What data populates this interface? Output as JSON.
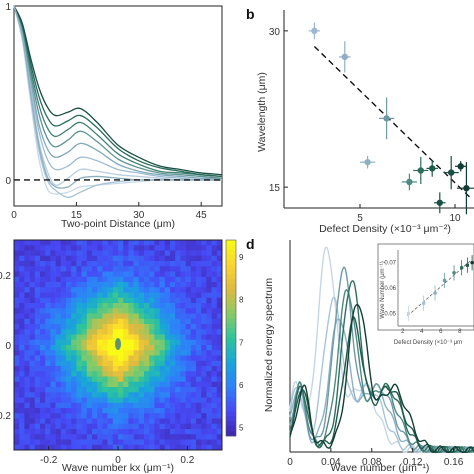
{
  "chart_data": [
    {
      "panel": "a",
      "type": "line",
      "xlabel": "Two-point Distance (μm)",
      "ylabel": "",
      "xlim": [
        0,
        50
      ],
      "ylim": [
        -0.15,
        1.0
      ],
      "x_ticks": [
        "0",
        "15",
        "30",
        "45"
      ],
      "y_ticks": [
        "1",
        "0"
      ],
      "grid": false,
      "series": [
        {
          "x": [
            0,
            2,
            4,
            6,
            8,
            10,
            13,
            16,
            20,
            25,
            30,
            35,
            40,
            45,
            50
          ],
          "y": [
            1,
            0.84,
            0.52,
            0.22,
            0.05,
            -0.03,
            0.01,
            0.06,
            0.05,
            0.03,
            0.02,
            0.01,
            0.0,
            0.0,
            0.0
          ]
        },
        {
          "x": [
            0,
            2,
            4,
            6,
            8,
            10,
            13,
            16,
            20,
            25,
            30,
            35,
            40,
            45,
            50
          ],
          "y": [
            1,
            0.85,
            0.55,
            0.28,
            0.12,
            0.06,
            0.08,
            0.13,
            0.11,
            0.06,
            0.04,
            0.02,
            0.01,
            0.0,
            0.0
          ]
        },
        {
          "x": [
            0,
            2,
            4,
            6,
            8,
            10,
            13,
            16,
            20,
            25,
            30,
            35,
            40,
            45,
            50
          ],
          "y": [
            1,
            0.86,
            0.58,
            0.32,
            0.18,
            0.13,
            0.16,
            0.21,
            0.17,
            0.09,
            0.05,
            0.03,
            0.02,
            0.01,
            0.01
          ]
        },
        {
          "x": [
            0,
            2,
            4,
            6,
            8,
            10,
            13,
            16,
            20,
            25,
            30,
            35,
            40,
            45,
            50
          ],
          "y": [
            1,
            0.87,
            0.61,
            0.38,
            0.24,
            0.19,
            0.23,
            0.28,
            0.22,
            0.12,
            0.07,
            0.04,
            0.03,
            0.02,
            0.01
          ]
        },
        {
          "x": [
            0,
            2,
            4,
            6,
            8,
            10,
            13,
            16,
            20,
            25,
            30,
            35,
            40,
            45,
            50
          ],
          "y": [
            1,
            0.88,
            0.64,
            0.43,
            0.3,
            0.25,
            0.29,
            0.33,
            0.26,
            0.15,
            0.09,
            0.05,
            0.04,
            0.03,
            0.02
          ]
        },
        {
          "x": [
            0,
            2,
            4,
            6,
            8,
            10,
            13,
            16,
            20,
            25,
            30,
            35,
            40,
            45,
            50
          ],
          "y": [
            1,
            0.89,
            0.67,
            0.48,
            0.36,
            0.31,
            0.34,
            0.37,
            0.3,
            0.18,
            0.11,
            0.07,
            0.05,
            0.03,
            0.02
          ]
        },
        {
          "x": [
            0,
            2,
            4,
            6,
            8,
            10,
            13,
            16,
            20,
            25,
            30,
            35,
            40,
            45,
            50
          ],
          "y": [
            1,
            0.9,
            0.7,
            0.53,
            0.42,
            0.37,
            0.39,
            0.41,
            0.33,
            0.2,
            0.13,
            0.08,
            0.06,
            0.04,
            0.03
          ]
        },
        {
          "x": [
            0,
            2,
            4,
            6,
            8,
            10,
            13,
            16,
            20,
            25,
            30,
            35,
            40,
            45,
            50
          ],
          "y": [
            1,
            0.8,
            0.45,
            0.12,
            -0.05,
            -0.08,
            -0.07,
            -0.04,
            -0.03,
            -0.02,
            -0.01,
            0.0,
            0.0,
            0.0,
            0.0
          ]
        },
        {
          "x": [
            0,
            2,
            4,
            6,
            8,
            10,
            13,
            16,
            20,
            25,
            30,
            35,
            40,
            45,
            50
          ],
          "y": [
            1,
            0.82,
            0.48,
            0.17,
            0.0,
            -0.06,
            -0.1,
            -0.07,
            -0.03,
            -0.01,
            0.0,
            0.0,
            0.0,
            0.0,
            0.0
          ]
        },
        {
          "x": [
            0,
            2,
            4,
            6,
            8,
            10,
            13,
            16,
            20,
            25,
            30,
            35,
            40,
            45,
            50
          ],
          "y": [
            1,
            0.83,
            0.5,
            0.2,
            0.02,
            -0.04,
            -0.04,
            0.01,
            0.02,
            0.01,
            0.0,
            0.0,
            0.0,
            0.0,
            0.0
          ]
        }
      ],
      "baseline_y": 0
    },
    {
      "panel": "b",
      "type": "scatter",
      "xlabel": "Defect Density (×10⁻³ μm⁻²)",
      "ylabel": "Wavelength (μm)",
      "xlim": [
        1,
        11
      ],
      "ylim": [
        13,
        32
      ],
      "x_ticks": [
        "5",
        "10"
      ],
      "x_tick_values": [
        5,
        10
      ],
      "y_ticks": [
        "15",
        "30"
      ],
      "y_tick_values": [
        15,
        30
      ],
      "grid": false,
      "points": [
        {
          "x": 2.6,
          "y": 30.0,
          "xerr": 0.3,
          "yerr": 0.8,
          "color": "#9bb7d4"
        },
        {
          "x": 4.2,
          "y": 27.5,
          "xerr": 0.3,
          "yerr": 1.5,
          "color": "#8faec7"
        },
        {
          "x": 5.4,
          "y": 17.4,
          "xerr": 0.4,
          "yerr": 0.6,
          "color": "#8eb1c2"
        },
        {
          "x": 6.4,
          "y": 21.6,
          "xerr": 0.4,
          "yerr": 2.0,
          "color": "#6f9aa5"
        },
        {
          "x": 7.6,
          "y": 15.5,
          "xerr": 0.4,
          "yerr": 0.8,
          "color": "#4f8a82"
        },
        {
          "x": 8.2,
          "y": 16.6,
          "xerr": 0.4,
          "yerr": 1.3,
          "color": "#2e6e5e"
        },
        {
          "x": 8.8,
          "y": 16.8,
          "xerr": 0.3,
          "yerr": 0.8,
          "color": "#1f5a4a"
        },
        {
          "x": 9.2,
          "y": 13.5,
          "xerr": 0.3,
          "yerr": 1.0,
          "color": "#1c5245"
        },
        {
          "x": 9.8,
          "y": 16.4,
          "xerr": 0.4,
          "yerr": 1.6,
          "color": "#1b4f43"
        },
        {
          "x": 10.3,
          "y": 17.0,
          "xerr": 0.3,
          "yerr": 0.5,
          "color": "#123d34"
        },
        {
          "x": 10.6,
          "y": 14.9,
          "xerr": 0.5,
          "yerr": 2.5,
          "color": "#123d34"
        }
      ],
      "fit_line": {
        "x": [
          2.6,
          10.8
        ],
        "y": [
          28.5,
          14.0
        ]
      }
    },
    {
      "panel": "c",
      "type": "heatmap",
      "xlabel": "Wave number kx (μm⁻¹)",
      "xlim": [
        -0.3,
        0.3
      ],
      "x_ticks": [
        "-0.2",
        "0",
        "0.2"
      ],
      "x_tick_values": [
        -0.2,
        0,
        0.2
      ],
      "y_ticks": [
        "0.2",
        "0",
        "0.2"
      ],
      "y_tick_values": [
        0.2,
        0,
        -0.2
      ],
      "colorbar_ticks": [
        "9",
        "8",
        "7",
        "6",
        "5"
      ],
      "colorbar_values": [
        9,
        8,
        7,
        6,
        5
      ],
      "clim": [
        4.8,
        9.4
      ],
      "colormap": [
        "#3e26a8",
        "#4748f4",
        "#2f7ffa",
        "#19a6d9",
        "#2cc49b",
        "#8bca65",
        "#e0b93f",
        "#fbd62e",
        "#f9fb15"
      ]
    },
    {
      "panel": "d",
      "type": "line",
      "xlabel": "Wave number (μm⁻¹)",
      "ylabel": "Normalized energy spectrum",
      "xlim": [
        0,
        0.18
      ],
      "x_ticks": [
        "0",
        "0.04",
        "0.08",
        "0.12",
        "0.16"
      ],
      "x_tick_values": [
        0,
        0.04,
        0.08,
        0.12,
        0.16
      ],
      "series_colors": [
        "#c5d7e6",
        "#a9c3d8",
        "#8eb1c2",
        "#6f9aa5",
        "#4f8a82",
        "#2e6e5e",
        "#1f5a4a",
        "#123d34"
      ],
      "peaks": [
        0.036,
        0.042,
        0.048,
        0.052,
        0.056,
        0.06,
        0.062,
        0.066
      ],
      "inset": {
        "xlabel": "Defect Density (×10⁻³ μm",
        "ylabel": "Wave Number (μm⁻¹)",
        "y_ticks": [
          "0.07",
          "0.06",
          "0.05"
        ],
        "x_ticks": [
          "2",
          "4",
          "6",
          "8"
        ]
      }
    }
  ],
  "labels": {
    "b": "b",
    "d": "d"
  }
}
